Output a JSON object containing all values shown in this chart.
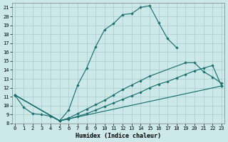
{
  "bg_color": "#cce8e8",
  "grid_color": "#aacccc",
  "line_color": "#1a7070",
  "xlabel": "Humidex (Indice chaleur)",
  "xlim": [
    -0.3,
    23.3
  ],
  "ylim": [
    8.0,
    21.5
  ],
  "xticks": [
    0,
    1,
    2,
    3,
    4,
    5,
    6,
    7,
    8,
    9,
    10,
    11,
    12,
    13,
    14,
    15,
    16,
    17,
    18,
    19,
    20,
    21,
    22,
    23
  ],
  "yticks": [
    8,
    9,
    10,
    11,
    12,
    13,
    14,
    15,
    16,
    17,
    18,
    19,
    20,
    21
  ],
  "line1_x": [
    0,
    1,
    2,
    3,
    4,
    5,
    6,
    7,
    8,
    9,
    10,
    11,
    12,
    13,
    14,
    15,
    16,
    17,
    18
  ],
  "line1_y": [
    11.2,
    9.8,
    9.1,
    9.0,
    8.8,
    8.3,
    9.5,
    12.3,
    14.2,
    16.6,
    18.5,
    19.2,
    20.2,
    20.3,
    21.0,
    21.2,
    19.3,
    17.5,
    16.5
  ],
  "line2_x": [
    0,
    5,
    23
  ],
  "line2_y": [
    11.2,
    8.3,
    12.2
  ],
  "line3_x": [
    0,
    5,
    6,
    7,
    8,
    9,
    10,
    11,
    12,
    13,
    14,
    15,
    16,
    17,
    18,
    19,
    20,
    21,
    22,
    23
  ],
  "line3_y": [
    11.2,
    8.3,
    8.5,
    8.8,
    9.1,
    9.5,
    9.9,
    10.3,
    10.7,
    11.1,
    11.5,
    12.0,
    12.4,
    12.7,
    13.1,
    13.5,
    13.9,
    14.2,
    14.5,
    12.2
  ],
  "line4_x": [
    0,
    5,
    6,
    7,
    8,
    9,
    10,
    11,
    12,
    13,
    14,
    15,
    19,
    20,
    21,
    22,
    23
  ],
  "line4_y": [
    11.2,
    8.3,
    8.6,
    9.1,
    9.6,
    10.1,
    10.6,
    11.2,
    11.8,
    12.3,
    12.8,
    13.3,
    14.8,
    14.8,
    13.8,
    13.2,
    12.5
  ]
}
